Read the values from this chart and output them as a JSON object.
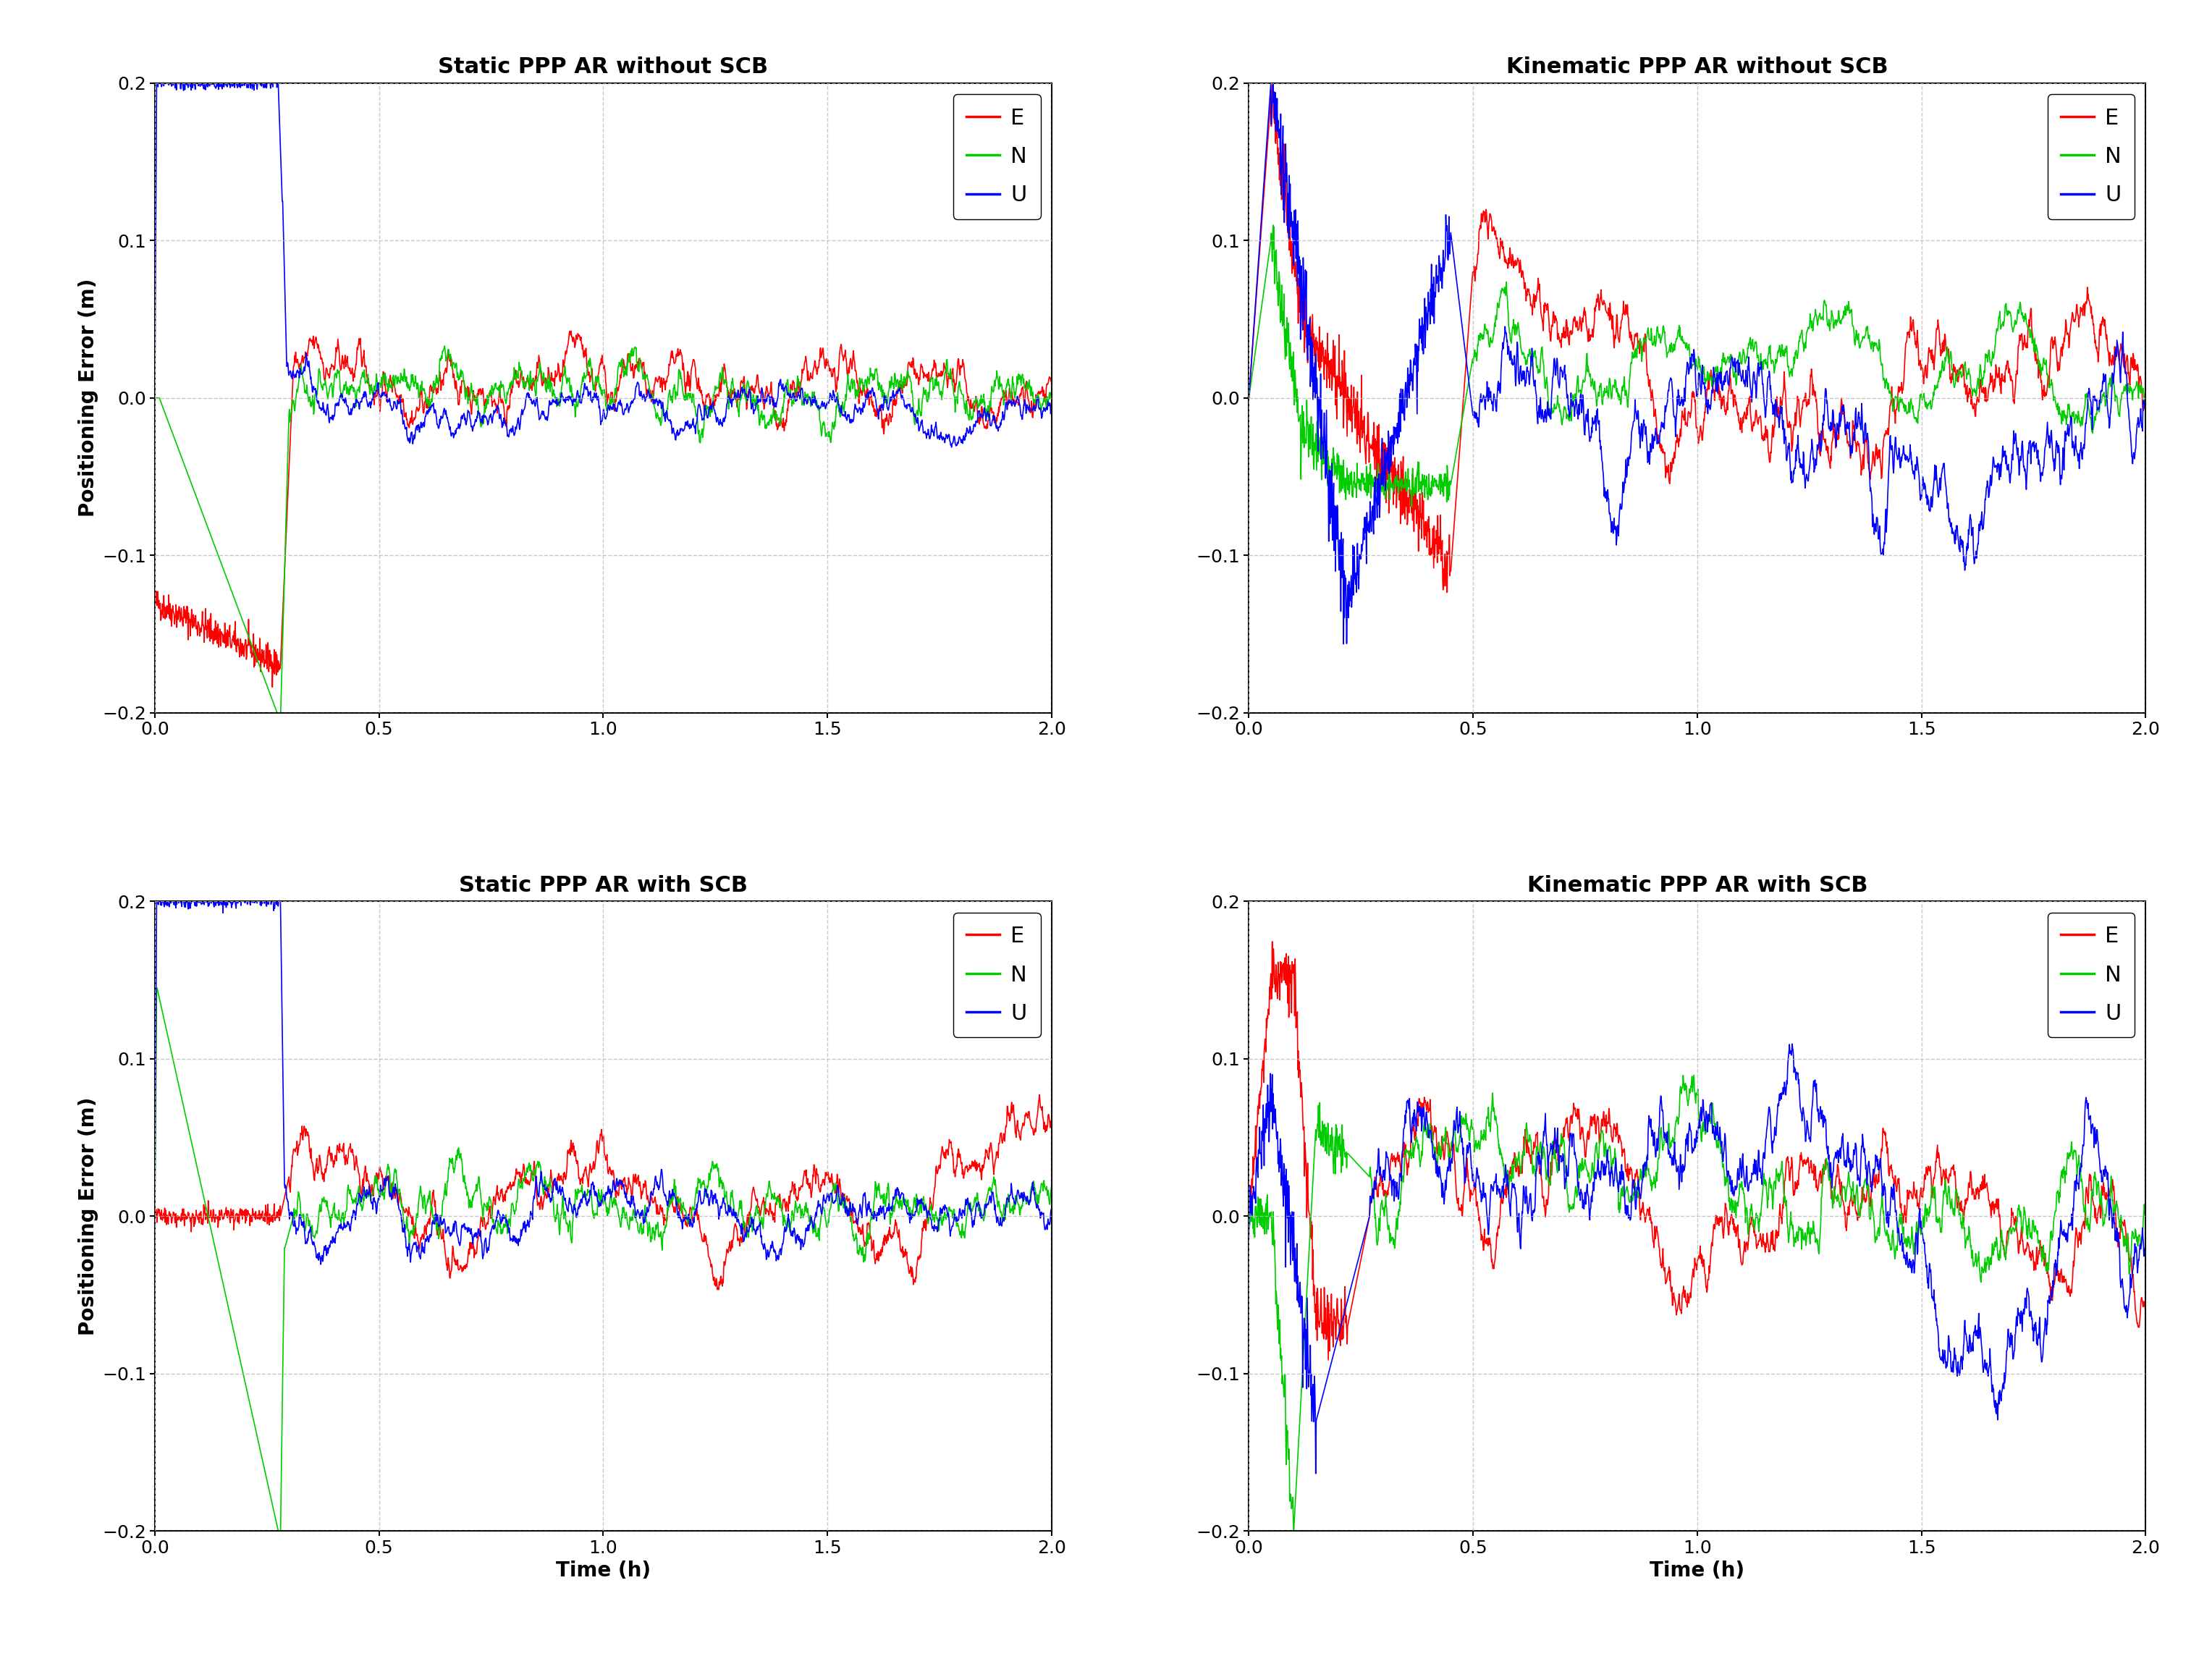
{
  "titles": [
    "Static PPP AR without SCB",
    "Kinematic PPP AR without SCB",
    "Static PPP AR with SCB",
    "Kinematic PPP AR with SCB"
  ],
  "xlabel": "Time (h)",
  "ylabel": "Positioning Error (m)",
  "xlim": [
    0,
    2.0
  ],
  "ylim": [
    -0.2,
    0.2
  ],
  "xticks": [
    0,
    0.5,
    1.0,
    1.5,
    2.0
  ],
  "yticks": [
    -0.2,
    -0.1,
    0,
    0.1,
    0.2
  ],
  "colors": {
    "E": "#ff0000",
    "N": "#00cc00",
    "U": "#0000ff"
  },
  "line_width": 1.2,
  "title_fontsize": 22,
  "label_fontsize": 20,
  "tick_fontsize": 18,
  "legend_fontsize": 22,
  "background_color": "#ffffff",
  "grid_color": "#bbbbbb",
  "grid_style": "--",
  "grid_alpha": 0.8
}
